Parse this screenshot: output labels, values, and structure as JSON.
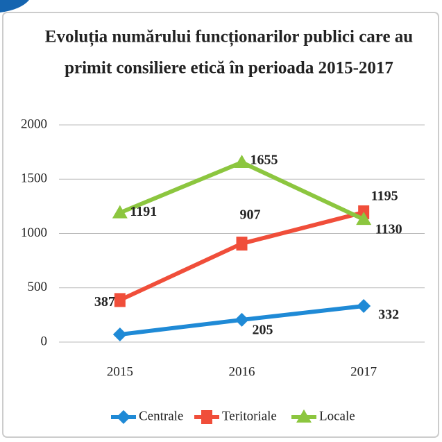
{
  "chart_data": {
    "type": "line",
    "title": [
      "Evoluția numărului funcționarilor publici care au",
      "primit consiliere etică în perioada 2015-2017"
    ],
    "categories": [
      "2015",
      "2016",
      "2017"
    ],
    "series": [
      {
        "name": "Centrale",
        "color": "#1f8ad6",
        "marker": "diamond",
        "values": [
          70,
          205,
          332
        ],
        "value_labels": [
          null,
          "205",
          "332"
        ]
      },
      {
        "name": "Teritoriale",
        "color": "#f04e3a",
        "marker": "square",
        "values": [
          387,
          907,
          1195
        ]
      },
      {
        "name": "Locale",
        "color": "#8cc63f",
        "marker": "triangle",
        "values": [
          1191,
          1655,
          1130
        ]
      }
    ],
    "ylim": [
      0,
      2000
    ],
    "yticks": [
      0,
      500,
      1000,
      1500,
      2000
    ],
    "grid": true,
    "legend": "bottom"
  }
}
